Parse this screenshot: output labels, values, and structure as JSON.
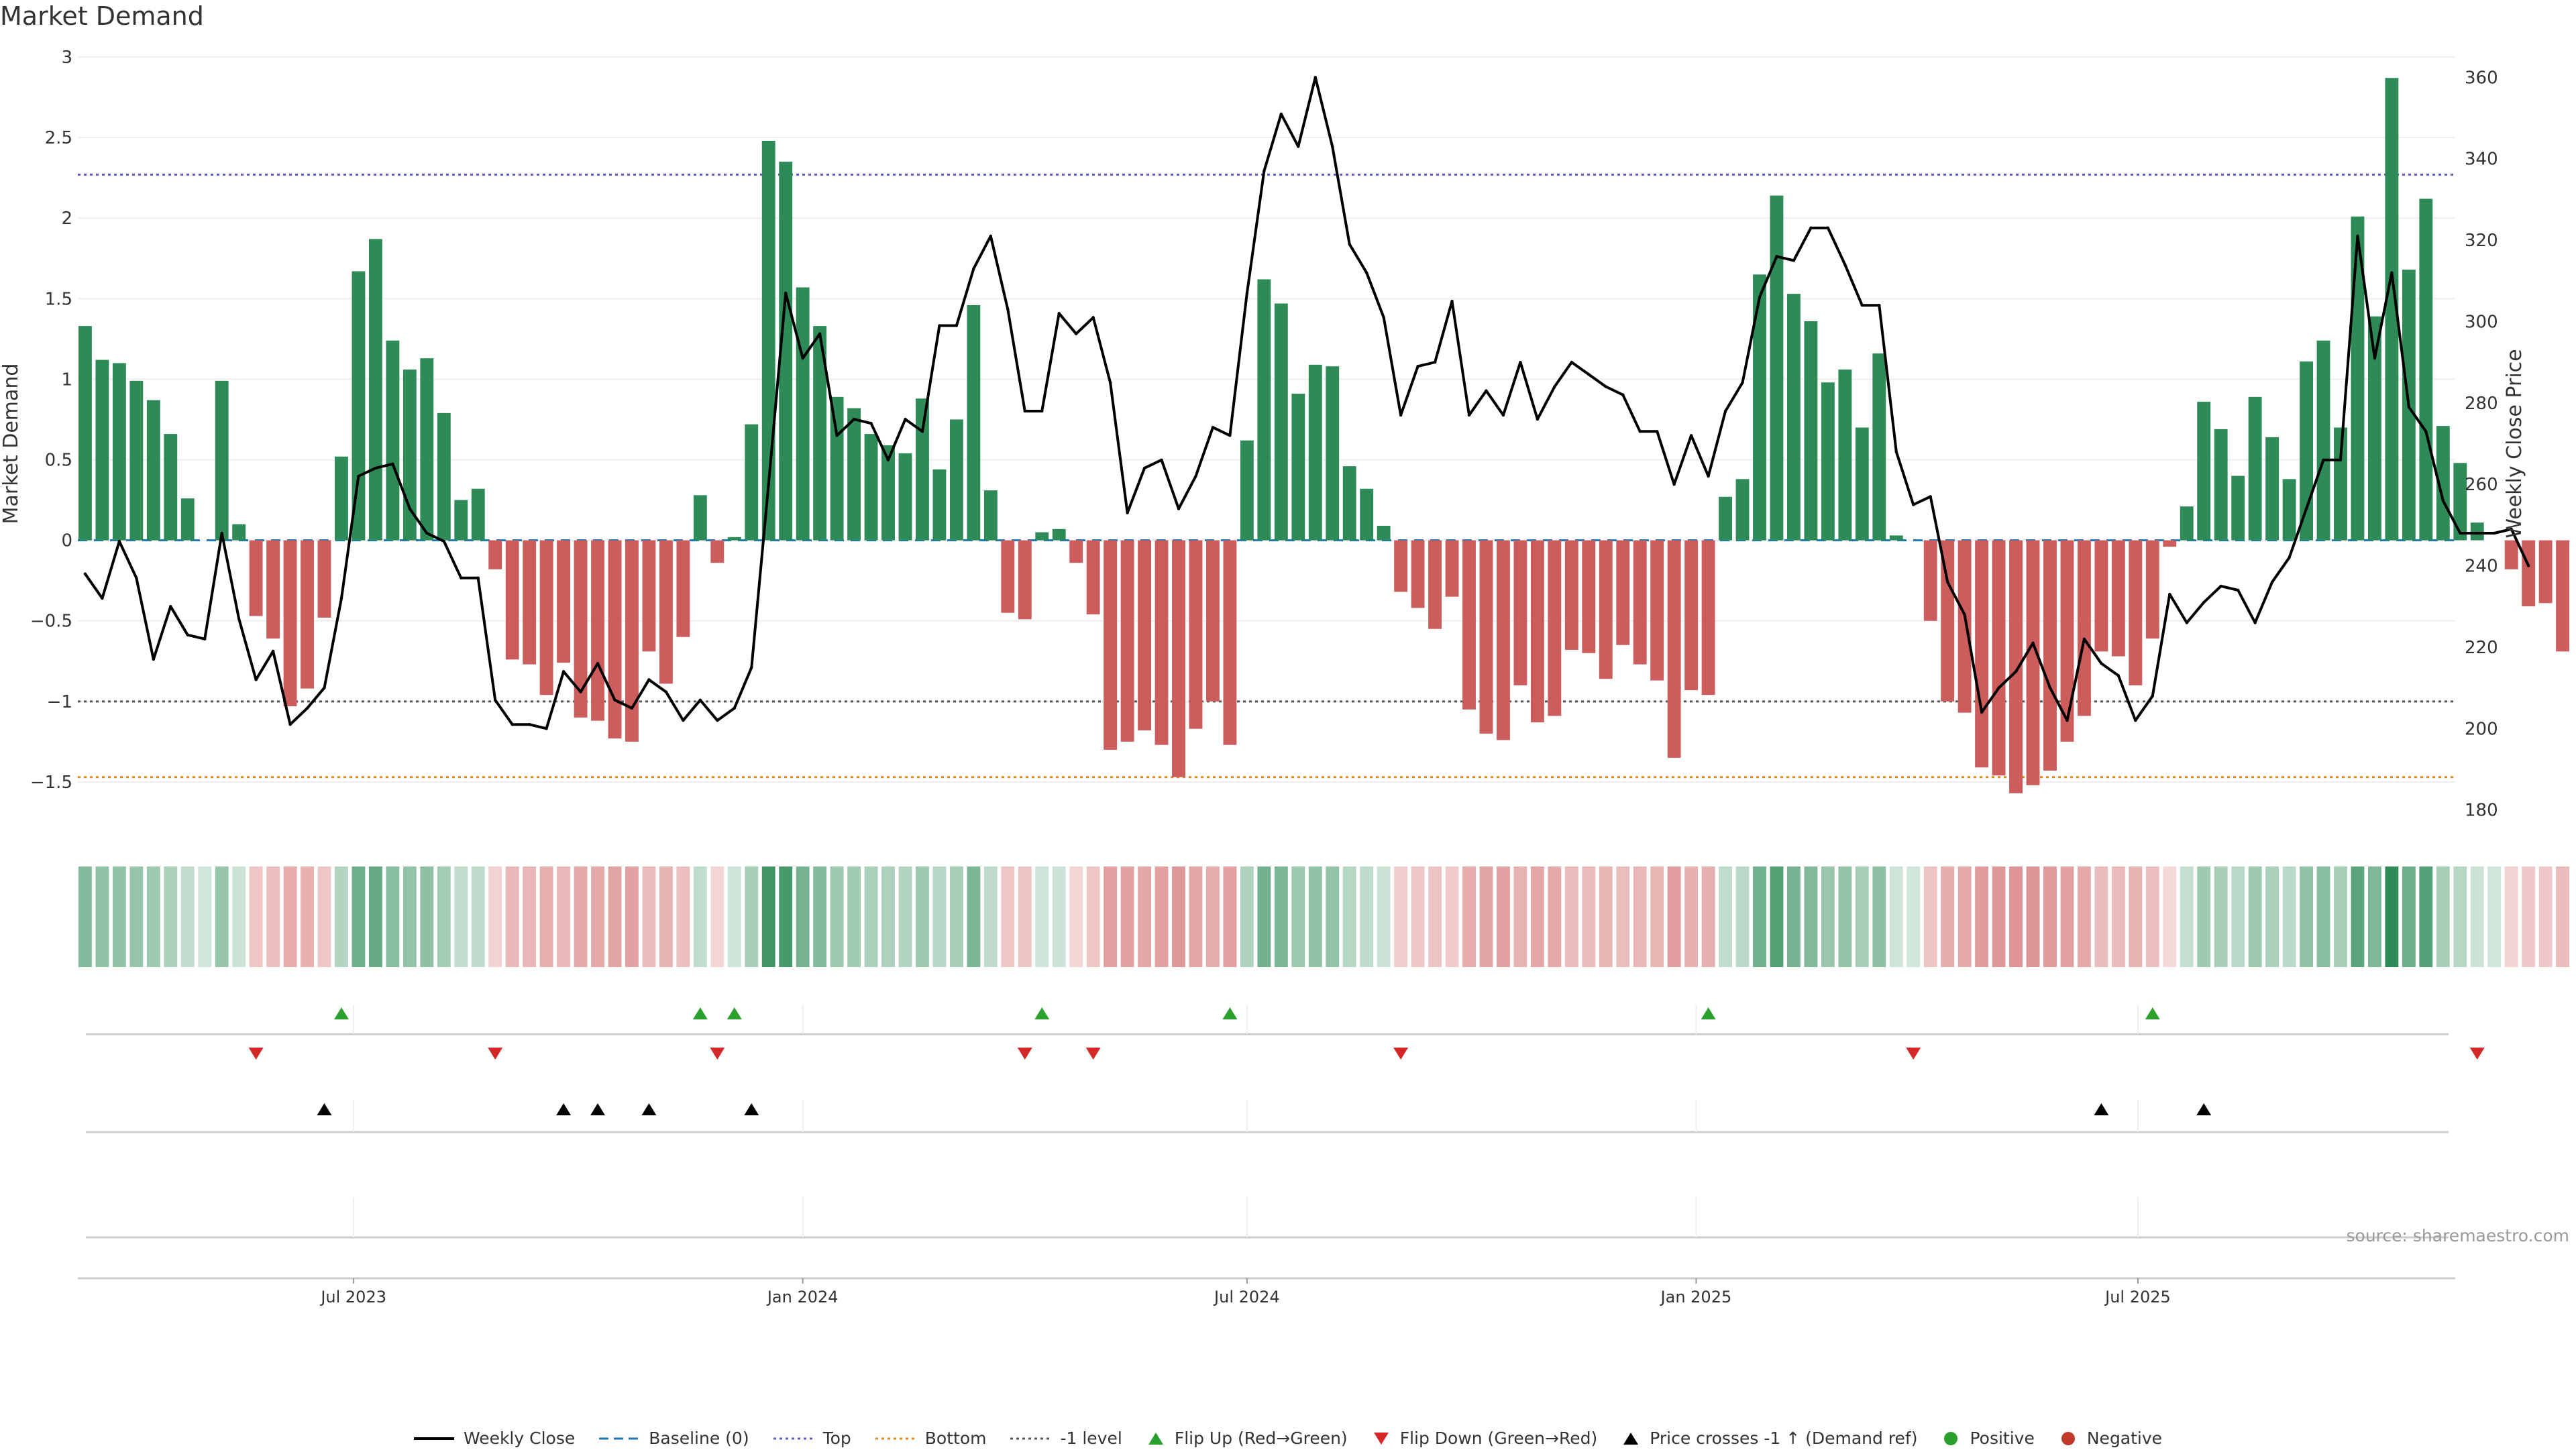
{
  "title": "Market Demand",
  "source": "source: sharemaestro.com",
  "legend": [
    {
      "label": "Weekly Close",
      "symbol": "line",
      "color": "#000000"
    },
    {
      "label": "Baseline (0)",
      "symbol": "dash",
      "color": "#1f77b4"
    },
    {
      "label": "Top",
      "symbol": "dot",
      "color": "#5b5bbf"
    },
    {
      "label": "Bottom",
      "symbol": "dot",
      "color": "#e08a1e"
    },
    {
      "label": "-1 level",
      "symbol": "dot",
      "color": "#555555"
    },
    {
      "label": "Flip Up (Red→Green)",
      "symbol": "tri-up",
      "color": "#2ca02c"
    },
    {
      "label": "Flip Down (Green→Red)",
      "symbol": "tri-down",
      "color": "#d62728"
    },
    {
      "label": "Price crosses -1 ↑ (Demand ref)",
      "symbol": "tri-up",
      "color": "#000000"
    },
    {
      "label": "Positive",
      "symbol": "circle",
      "color": "#2ca02c"
    },
    {
      "label": "Negative",
      "symbol": "circle",
      "color": "#c0392b"
    }
  ],
  "colors": {
    "positive": "#2e8b57",
    "negative": "#cd5c5c",
    "price": "#000000",
    "top": "#5b5bbf",
    "bottom": "#e08a1e",
    "minus1": "#555555",
    "baseline": "#1f77b4",
    "flip_up": "#2ca02c",
    "flip_down": "#d62728",
    "cross": "#000000"
  },
  "chart_data": {
    "type": "bar",
    "title": "Market Demand",
    "ylabel": "Market Demand",
    "y2label": "Weekly Close Price",
    "ylim": [
      -1.8,
      3.0
    ],
    "y_ticks": [
      3,
      2.5,
      2,
      1.5,
      1,
      0.5,
      0,
      -0.5,
      -1,
      -1.5
    ],
    "y_tick_labels": [
      "3",
      "2.5",
      "2",
      "1.5",
      "1",
      "0.5",
      "0",
      "−0.5",
      "−1",
      "−1.5"
    ],
    "y2lim": [
      175,
      365
    ],
    "y2_ticks": [
      360,
      340,
      320,
      300,
      280,
      260,
      240,
      220,
      200,
      180
    ],
    "x_start": "2023-03-13",
    "x_range": [
      "2023-03-10",
      "2025-11-08"
    ],
    "x_ticks": [
      {
        "label": "Jul 2023",
        "date": "2023-07-01"
      },
      {
        "label": "Jan 2024",
        "date": "2024-01-01"
      },
      {
        "label": "Jul 2024",
        "date": "2024-07-01"
      },
      {
        "label": "Jan 2025",
        "date": "2025-01-01"
      },
      {
        "label": "Jul 2025",
        "date": "2025-07-01"
      }
    ],
    "levels": {
      "top": 2.27,
      "bottom": -1.47,
      "minus_one": -1.0,
      "baseline": 0
    },
    "demand": [
      1.33,
      1.12,
      1.1,
      0.99,
      0.87,
      0.66,
      0.26,
      0.0,
      0.99,
      0.1,
      -0.47,
      -0.61,
      -1.03,
      -0.92,
      -0.48,
      0.52,
      1.67,
      1.87,
      1.24,
      1.06,
      1.13,
      0.79,
      0.25,
      0.32,
      -0.18,
      -0.74,
      -0.77,
      -0.96,
      -0.76,
      -1.1,
      -1.12,
      -1.23,
      -1.25,
      -0.69,
      -0.89,
      -0.6,
      0.28,
      -0.14,
      0.02,
      0.72,
      2.48,
      2.35,
      1.57,
      1.33,
      0.89,
      0.82,
      0.66,
      0.59,
      0.54,
      0.88,
      0.44,
      0.75,
      1.46,
      0.31,
      -0.45,
      -0.49,
      0.05,
      0.07,
      -0.14,
      -0.46,
      -1.3,
      -1.25,
      -1.18,
      -1.27,
      -1.47,
      -1.17,
      -1.0,
      -1.27,
      0.62,
      1.62,
      1.47,
      0.91,
      1.09,
      1.08,
      0.46,
      0.32,
      0.09,
      -0.32,
      -0.42,
      -0.55,
      -0.35,
      -1.05,
      -1.2,
      -1.24,
      -0.9,
      -1.13,
      -1.09,
      -0.68,
      -0.7,
      -0.86,
      -0.65,
      -0.77,
      -0.87,
      -1.35,
      -0.93,
      -0.96,
      0.27,
      0.38,
      1.65,
      2.14,
      1.53,
      1.36,
      0.98,
      1.06,
      0.7,
      1.16,
      0.03,
      0.0,
      -0.5,
      -1.0,
      -1.07,
      -1.41,
      -1.46,
      -1.57,
      -1.52,
      -1.43,
      -1.25,
      -1.09,
      -0.69,
      -0.72,
      -0.9,
      -0.61,
      -0.04,
      0.21,
      0.86,
      0.69,
      0.4,
      0.89,
      0.64,
      0.38,
      1.11,
      1.24,
      0.7,
      2.01,
      1.39,
      2.87,
      1.68,
      2.12,
      0.71,
      0.48,
      0.11,
      0.0,
      -0.18,
      -0.41,
      -0.39,
      -0.69
    ],
    "price": [
      238,
      232,
      246,
      237,
      217,
      230,
      223,
      222,
      248,
      227,
      212,
      219,
      201,
      205,
      210,
      232,
      262,
      264,
      265,
      254,
      248,
      246,
      237,
      237,
      207,
      201,
      201,
      200,
      214,
      209,
      216,
      207,
      205,
      212,
      209,
      202,
      207,
      202,
      205,
      215,
      260,
      307,
      291,
      297,
      272,
      276,
      275,
      266,
      276,
      273,
      299,
      299,
      313,
      321,
      303,
      278,
      278,
      302,
      297,
      301,
      285,
      253,
      264,
      266,
      254,
      262,
      274,
      272,
      307,
      337,
      351,
      343,
      360,
      343,
      319,
      312,
      301,
      277,
      289,
      290,
      305,
      277,
      283,
      277,
      290,
      276,
      284,
      290,
      287,
      284,
      282,
      273,
      273,
      260,
      272,
      262,
      278,
      285,
      306,
      316,
      315,
      323,
      323,
      314,
      304,
      304,
      268,
      255,
      257,
      236,
      228,
      204,
      210,
      214,
      221,
      210,
      202,
      222,
      216,
      213,
      202,
      208,
      233,
      226,
      231,
      235,
      234,
      226,
      236,
      242,
      254,
      266,
      266,
      321,
      291,
      312,
      279,
      273,
      256,
      248,
      248,
      248,
      249,
      240
    ],
    "flip_up_idx": [
      15,
      36,
      38,
      56,
      67,
      95,
      121
    ],
    "flip_down_idx": [
      10,
      24,
      37,
      55,
      59,
      77,
      107,
      140
    ],
    "cross_idx": [
      14,
      28,
      30,
      33,
      39,
      118,
      124
    ]
  }
}
